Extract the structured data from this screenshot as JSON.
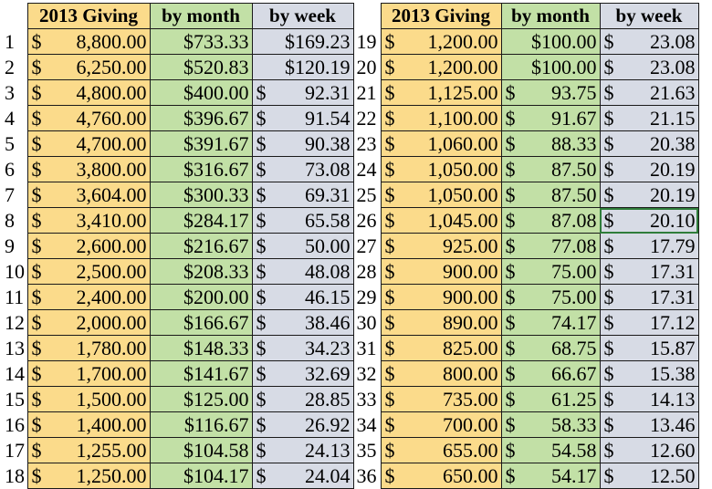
{
  "headers": {
    "giving": "2013 Giving",
    "month": "by  month",
    "week": "by week"
  },
  "currency": "$",
  "left_rows": [
    {
      "n": "1",
      "giving": "8,800.00",
      "month": "$733.33",
      "week": "$169.23"
    },
    {
      "n": "2",
      "giving": "6,250.00",
      "month": "$520.83",
      "week": "$120.19"
    },
    {
      "n": "3",
      "giving": "4,800.00",
      "month": "$400.00",
      "week": "92.31"
    },
    {
      "n": "4",
      "giving": "4,760.00",
      "month": "$396.67",
      "week": "91.54"
    },
    {
      "n": "5",
      "giving": "4,700.00",
      "month": "$391.67",
      "week": "90.38"
    },
    {
      "n": "6",
      "giving": "3,800.00",
      "month": "$316.67",
      "week": "73.08"
    },
    {
      "n": "7",
      "giving": "3,604.00",
      "month": "$300.33",
      "week": "69.31"
    },
    {
      "n": "8",
      "giving": "3,410.00",
      "month": "$284.17",
      "week": "65.58"
    },
    {
      "n": "9",
      "giving": "2,600.00",
      "month": "$216.67",
      "week": "50.00"
    },
    {
      "n": "10",
      "giving": "2,500.00",
      "month": "$208.33",
      "week": "48.08"
    },
    {
      "n": "11",
      "giving": "2,400.00",
      "month": "$200.00",
      "week": "46.15"
    },
    {
      "n": "12",
      "giving": "2,000.00",
      "month": "$166.67",
      "week": "38.46"
    },
    {
      "n": "13",
      "giving": "1,780.00",
      "month": "$148.33",
      "week": "34.23"
    },
    {
      "n": "14",
      "giving": "1,700.00",
      "month": "$141.67",
      "week": "32.69"
    },
    {
      "n": "15",
      "giving": "1,500.00",
      "month": "$125.00",
      "week": "28.85"
    },
    {
      "n": "16",
      "giving": "1,400.00",
      "month": "$116.67",
      "week": "26.92"
    },
    {
      "n": "17",
      "giving": "1,255.00",
      "month": "$104.58",
      "week": "24.13"
    },
    {
      "n": "18",
      "giving": "1,250.00",
      "month": "$104.17",
      "week": "24.04"
    }
  ],
  "right_rows": [
    {
      "n": "19",
      "giving": "1,200.00",
      "month": "$100.00",
      "week": "23.08"
    },
    {
      "n": "20",
      "giving": "1,200.00",
      "month": "$100.00",
      "week": "23.08"
    },
    {
      "n": "21",
      "giving": "1,125.00",
      "month": "93.75",
      "week": "21.63"
    },
    {
      "n": "22",
      "giving": "1,100.00",
      "month": "91.67",
      "week": "21.15"
    },
    {
      "n": "23",
      "giving": "1,060.00",
      "month": "88.33",
      "week": "20.38"
    },
    {
      "n": "24",
      "giving": "1,050.00",
      "month": "87.50",
      "week": "20.19"
    },
    {
      "n": "25",
      "giving": "1,050.00",
      "month": "87.50",
      "week": "20.19"
    },
    {
      "n": "26",
      "giving": "1,045.00",
      "month": "87.08",
      "week": "20.10"
    },
    {
      "n": "27",
      "giving": "925.00",
      "month": "77.08",
      "week": "17.79"
    },
    {
      "n": "28",
      "giving": "900.00",
      "month": "75.00",
      "week": "17.31"
    },
    {
      "n": "29",
      "giving": "900.00",
      "month": "75.00",
      "week": "17.31"
    },
    {
      "n": "30",
      "giving": "890.00",
      "month": "74.17",
      "week": "17.12"
    },
    {
      "n": "31",
      "giving": "825.00",
      "month": "68.75",
      "week": "15.87"
    },
    {
      "n": "32",
      "giving": "800.00",
      "month": "66.67",
      "week": "15.38"
    },
    {
      "n": "33",
      "giving": "735.00",
      "month": "61.25",
      "week": "14.13"
    },
    {
      "n": "34",
      "giving": "700.00",
      "month": "58.33",
      "week": "13.46"
    },
    {
      "n": "35",
      "giving": "655.00",
      "month": "54.58",
      "week": "12.60"
    },
    {
      "n": "36",
      "giving": "650.00",
      "month": "54.17",
      "week": "12.50"
    }
  ],
  "selected_cell": {
    "side": "right",
    "row": 7,
    "col": "week"
  }
}
